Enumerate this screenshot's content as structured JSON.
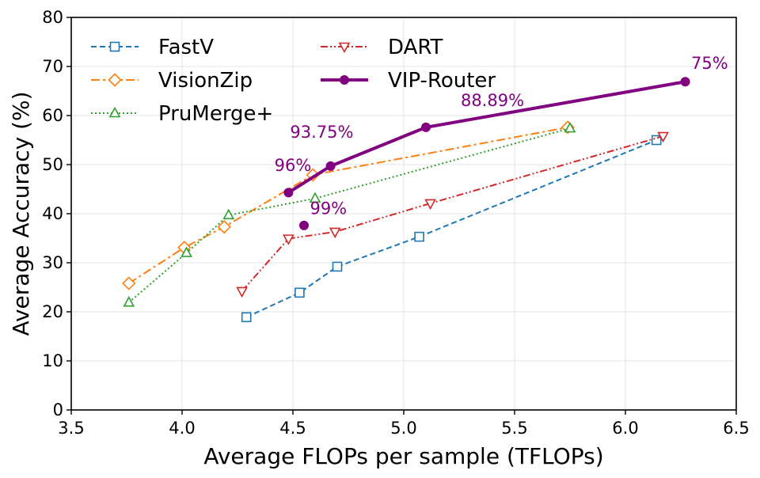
{
  "chart_data": {
    "type": "line",
    "title": "",
    "xlabel": "Average FLOPs per sample (TFLOPs)",
    "ylabel": "Average Accuracy (%)",
    "xlim": [
      3.5,
      6.5
    ],
    "ylim": [
      0,
      80
    ],
    "xticks": [
      "3.5",
      "4.0",
      "4.5",
      "5.0",
      "5.5",
      "6.0",
      "6.5"
    ],
    "yticks": [
      "0",
      "10",
      "20",
      "30",
      "40",
      "50",
      "60",
      "70",
      "80"
    ],
    "grid": true,
    "legend_position": "top-left",
    "series": [
      {
        "name": "FastV",
        "color": "#1f77b4",
        "linestyle": "dashed",
        "marker": "square",
        "points": [
          [
            4.29,
            18.9
          ],
          [
            4.53,
            23.9
          ],
          [
            4.7,
            29.2
          ],
          [
            5.07,
            35.3
          ],
          [
            6.14,
            55.0
          ]
        ]
      },
      {
        "name": "VisionZip",
        "color": "#ff7f0e",
        "linestyle": "dashdot",
        "marker": "diamond",
        "points": [
          [
            3.76,
            25.8
          ],
          [
            4.01,
            33.1
          ],
          [
            4.19,
            37.3
          ],
          [
            4.59,
            47.9
          ],
          [
            5.74,
            57.6
          ]
        ]
      },
      {
        "name": "PruMerge+",
        "color": "#2ca02c",
        "linestyle": "dotted",
        "marker": "triangle-up",
        "points": [
          [
            3.76,
            21.9
          ],
          [
            4.02,
            32.0
          ],
          [
            4.21,
            39.7
          ],
          [
            4.6,
            43.1
          ],
          [
            5.75,
            57.4
          ]
        ]
      },
      {
        "name": "DART",
        "color": "#d62728",
        "linestyle": "dashdotdot",
        "marker": "triangle-down",
        "points": [
          [
            4.27,
            24.2
          ],
          [
            4.48,
            34.9
          ],
          [
            4.69,
            36.3
          ],
          [
            5.12,
            42.1
          ],
          [
            6.17,
            55.8
          ]
        ]
      },
      {
        "name": "VIP-Router",
        "color": "#800080",
        "linestyle": "solid",
        "marker": "circle",
        "points": [
          [
            4.48,
            44.3
          ],
          [
            4.67,
            49.7
          ],
          [
            5.1,
            57.6
          ],
          [
            6.27,
            66.9
          ]
        ]
      },
      {
        "name": "",
        "color": "#800080",
        "linestyle": "none",
        "marker": "circle",
        "points": [
          [
            4.55,
            37.6
          ]
        ]
      }
    ],
    "annotations": [
      {
        "text": "75%",
        "x": 6.38,
        "y": 69.5
      },
      {
        "text": "88.89%",
        "x": 5.4,
        "y": 61.9
      },
      {
        "text": "93.75%",
        "x": 4.63,
        "y": 55.5
      },
      {
        "text": "96%",
        "x": 4.5,
        "y": 48.7
      },
      {
        "text": "99%",
        "x": 4.66,
        "y": 39.9
      }
    ],
    "annotation_color": "#800080"
  }
}
